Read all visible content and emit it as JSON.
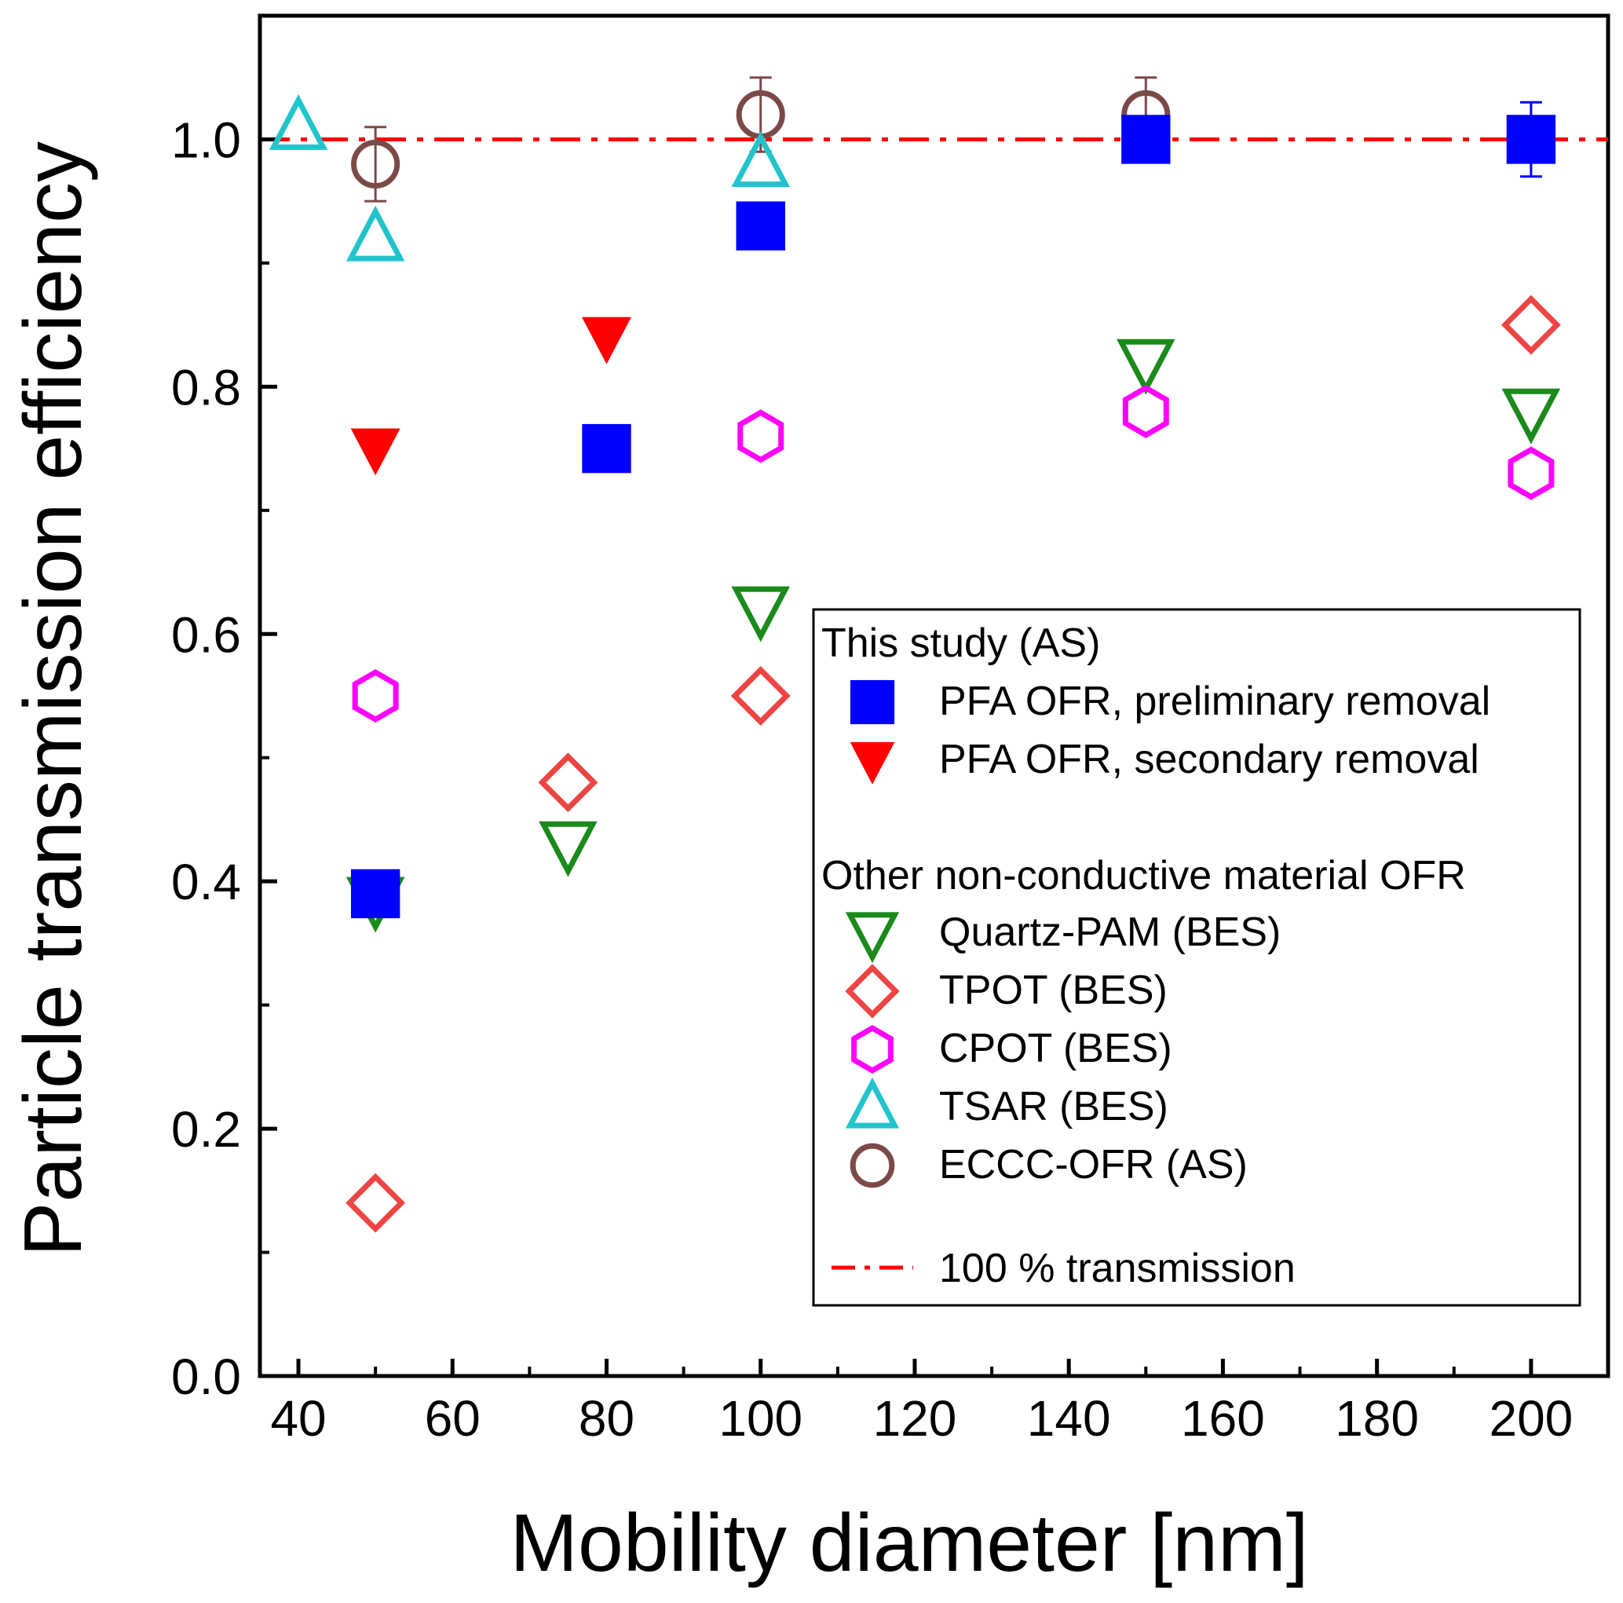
{
  "chart_data": {
    "type": "scatter",
    "xlabel": "Mobility diameter [nm]",
    "ylabel": "Particle transmission efficiency",
    "xlim": [
      35,
      210
    ],
    "ylim": [
      0,
      1.1
    ],
    "xticks": [
      40,
      60,
      80,
      100,
      120,
      140,
      160,
      180,
      200
    ],
    "yticks": [
      0.0,
      0.2,
      0.4,
      0.6,
      0.8,
      1.0
    ],
    "xtick_labels": [
      "40",
      "60",
      "80",
      "100",
      "120",
      "140",
      "160",
      "180",
      "200"
    ],
    "ytick_labels": [
      "0.0",
      "0.2",
      "0.4",
      "0.6",
      "0.8",
      "1.0"
    ],
    "reference_line": {
      "y": 1.0,
      "label": "100 % transmission",
      "color": "#ff0000",
      "style": "dash-dot"
    },
    "series": [
      {
        "name": "ECCC-OFR (AS)",
        "marker": "circle",
        "filled": false,
        "color": "#7b4a48",
        "points": [
          {
            "x": 50,
            "y": 0.98,
            "err": 0.03
          },
          {
            "x": 100,
            "y": 1.02,
            "err": 0.03
          },
          {
            "x": 150,
            "y": 1.02,
            "err": 0.03
          }
        ]
      },
      {
        "name": "Quartz-PAM (BES)",
        "marker": "triangle-down",
        "filled": false,
        "color": "#1a8a1a",
        "points": [
          {
            "x": 50,
            "y": 0.385
          },
          {
            "x": 75,
            "y": 0.43
          },
          {
            "x": 100,
            "y": 0.62
          },
          {
            "x": 150,
            "y": 0.82
          },
          {
            "x": 200,
            "y": 0.78
          }
        ]
      },
      {
        "name": "TPOT (BES)",
        "marker": "diamond",
        "filled": false,
        "color": "#ee4444",
        "points": [
          {
            "x": 50,
            "y": 0.14
          },
          {
            "x": 75,
            "y": 0.48
          },
          {
            "x": 100,
            "y": 0.55
          },
          {
            "x": 200,
            "y": 0.85
          }
        ]
      },
      {
        "name": "CPOT (BES)",
        "marker": "hexagon",
        "filled": false,
        "color": "#ff00ff",
        "points": [
          {
            "x": 50,
            "y": 0.55
          },
          {
            "x": 100,
            "y": 0.76
          },
          {
            "x": 150,
            "y": 0.78
          },
          {
            "x": 200,
            "y": 0.73
          }
        ]
      },
      {
        "name": "TSAR (BES)",
        "marker": "triangle-up",
        "filled": false,
        "color": "#22c4cc",
        "points": [
          {
            "x": 40,
            "y": 1.01
          },
          {
            "x": 50,
            "y": 0.92
          },
          {
            "x": 100,
            "y": 0.98
          }
        ]
      },
      {
        "name": "PFA OFR, secondary removal",
        "marker": "triangle-down",
        "filled": true,
        "color": "#ff0000",
        "points": [
          {
            "x": 50,
            "y": 0.75
          },
          {
            "x": 80,
            "y": 0.84
          }
        ]
      },
      {
        "name": "PFA OFR, preliminary removal",
        "marker": "square",
        "filled": true,
        "color": "#0000ff",
        "points": [
          {
            "x": 50,
            "y": 0.39
          },
          {
            "x": 80,
            "y": 0.75
          },
          {
            "x": 100,
            "y": 0.93
          },
          {
            "x": 150,
            "y": 1.0,
            "err": 0.01
          },
          {
            "x": 200,
            "y": 1.0,
            "err": 0.03
          }
        ]
      }
    ],
    "legend": {
      "position": "bottom-right",
      "group1_title": "This study (AS)",
      "group1": [
        {
          "label": "PFA OFR, preliminary removal",
          "marker": "square",
          "filled": true,
          "color": "#0000ff"
        },
        {
          "label": "PFA OFR, secondary removal",
          "marker": "triangle-down",
          "filled": true,
          "color": "#ff0000"
        }
      ],
      "group2_title": "Other non-conductive material OFR",
      "group2": [
        {
          "label": "Quartz-PAM (BES)",
          "marker": "triangle-down",
          "filled": false,
          "color": "#1a8a1a"
        },
        {
          "label": "TPOT (BES)",
          "marker": "diamond",
          "filled": false,
          "color": "#ee4444"
        },
        {
          "label": "CPOT (BES)",
          "marker": "hexagon",
          "filled": false,
          "color": "#ff00ff"
        },
        {
          "label": "TSAR (BES)",
          "marker": "triangle-up",
          "filled": false,
          "color": "#22c4cc"
        },
        {
          "label": "ECCC-OFR (AS)",
          "marker": "circle",
          "filled": false,
          "color": "#7b4a48"
        }
      ],
      "line_entry": {
        "label": "100 % transmission",
        "color": "#ff0000"
      }
    }
  }
}
